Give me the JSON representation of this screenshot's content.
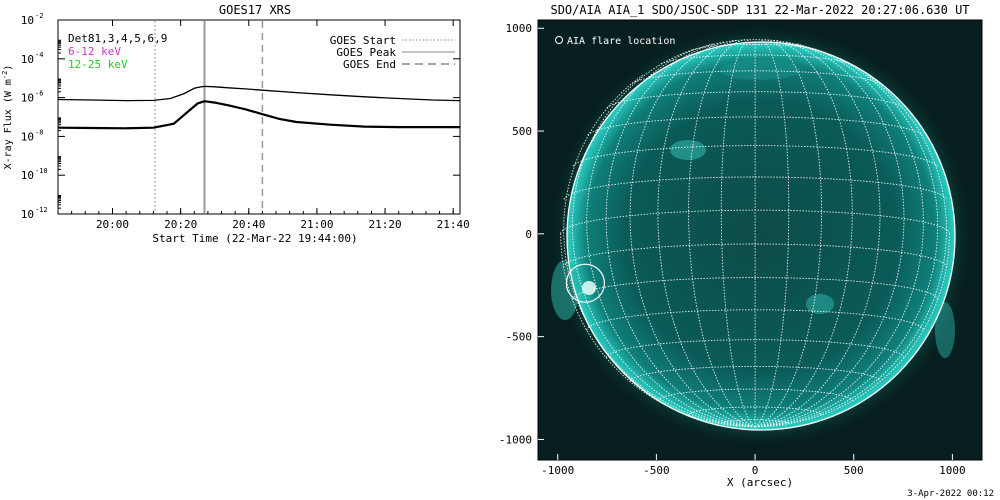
{
  "left_panel": {
    "title": "GOES17 XRS",
    "xlabel": "Start Time (22-Mar-22 19:44:00)",
    "ylabel_prefix": "X-ray Flux (W m",
    "ylabel_exp": "-2",
    "ylabel_suffix": ")",
    "det_label": "Det81,3,4,5,6,9",
    "band_low": "6-12 keV",
    "band_high": "12-25 keV",
    "band_low_color": "#cc33cc",
    "band_high_color": "#22cc22",
    "legend_start": "GOES Start",
    "legend_peak": "GOES Peak",
    "legend_end": "GOES End"
  },
  "right_panel": {
    "title": "SDO/AIA AIA_1 SDO/JSOC-SDP 131 22-Mar-2022 20:27:06.630 UT",
    "legend": "AIA flare location",
    "xlabel": "X (arcsec)",
    "footer": "3-Apr-2022 00:12",
    "image_color": "#0d6e6a"
  },
  "chart_data": [
    {
      "type": "line",
      "title": "GOES17 XRS",
      "xlabel": "Start Time (22-Mar-22 19:44:00)",
      "ylabel": "X-ray Flux (W m-2)",
      "y_scale": "log",
      "x_unit": "minutes after 19:44:00",
      "xlim": [
        0,
        118
      ],
      "ylim": [
        1e-12,
        0.01
      ],
      "x_ticks": [
        16,
        36,
        56,
        76,
        96,
        116
      ],
      "x_tick_labels": [
        "20:00",
        "20:20",
        "20:40",
        "21:00",
        "21:20",
        "21:40"
      ],
      "y_ticks": [
        1e-12,
        1e-10,
        1e-08,
        1e-06,
        0.0001,
        0.01
      ],
      "y_tick_base": "10",
      "y_tick_exponents": [
        "-12",
        "-10",
        "-8",
        "-6",
        "-4",
        "-2"
      ],
      "markers": [
        {
          "name": "GOES Start",
          "x": 28.5,
          "style": "dotted"
        },
        {
          "name": "GOES Peak",
          "x": 43,
          "style": "solid"
        },
        {
          "name": "GOES End",
          "x": 60,
          "style": "dashed"
        }
      ],
      "series": [
        {
          "x": [
            0,
            10,
            20,
            28,
            33,
            37,
            40,
            42,
            43,
            46,
            50,
            55,
            60,
            70,
            80,
            90,
            100,
            110,
            118
          ],
          "values": [
            8e-07,
            7.5e-07,
            7e-07,
            7.2e-07,
            9e-07,
            1.6e-06,
            3e-06,
            3.6e-06,
            3.8e-06,
            3.6e-06,
            3.2e-06,
            2.8e-06,
            2.4e-06,
            1.8e-06,
            1.4e-06,
            1.1e-06,
            9e-07,
            7.5e-07,
            7e-07
          ]
        },
        {
          "x": [
            0,
            10,
            20,
            28,
            34,
            38,
            41,
            43,
            46,
            50,
            55,
            60,
            65,
            70,
            80,
            90,
            100,
            110,
            118
          ],
          "values": [
            2.8e-08,
            2.7e-08,
            2.6e-08,
            2.8e-08,
            4.5e-08,
            1.8e-07,
            5e-07,
            6.5e-07,
            5.5e-07,
            4e-07,
            2.5e-07,
            1.4e-07,
            8e-08,
            5.5e-08,
            4e-08,
            3.2e-08,
            3e-08,
            3e-08,
            3e-08
          ]
        }
      ]
    },
    {
      "type": "scatter",
      "title": "SDO/AIA AIA_1 SDO/JSOC-SDP 131 22-Mar-2022 20:27:06.630 UT",
      "xlabel": "X (arcsec)",
      "ylabel": "",
      "xlim": [
        -1100,
        1150
      ],
      "ylim": [
        -1100,
        1040
      ],
      "x_ticks": [
        -1000,
        -500,
        0,
        500,
        1000
      ],
      "y_ticks": [
        -1000,
        -500,
        0,
        500,
        1000
      ],
      "solar_radius_arcsec": 985,
      "grid_spacing_deg": 10,
      "series": [
        {
          "name": "AIA flare location",
          "x": [
            -860
          ],
          "values": [
            -240
          ]
        }
      ]
    }
  ]
}
